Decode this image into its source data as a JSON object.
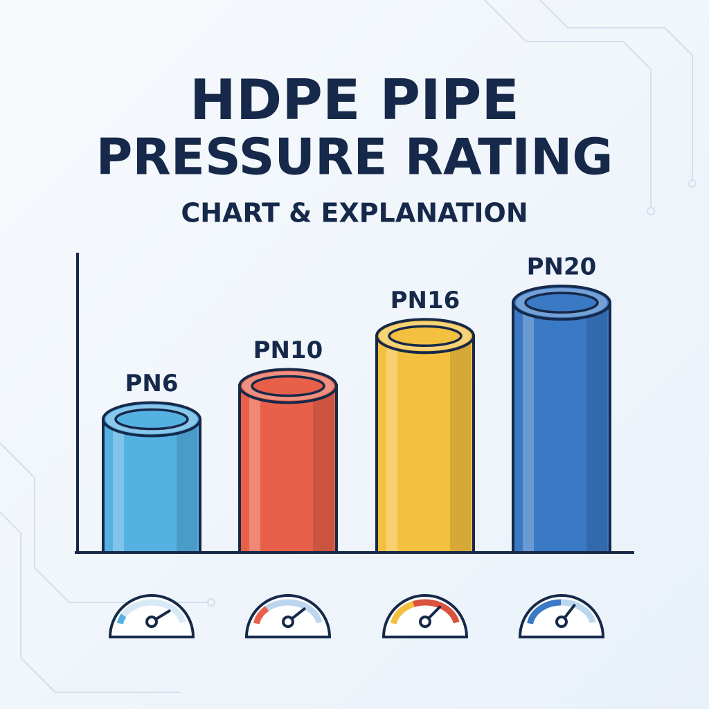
{
  "chart_data": {
    "type": "bar",
    "title": "HDPE PIPE",
    "title_line2": "PRESSURE RATING",
    "subtitle": "CHART & EXPLANATION",
    "values": [
      6,
      10,
      16,
      20
    ],
    "value_labels": [
      "PN6",
      "PN10",
      "PN16",
      "PN20"
    ],
    "colors": [
      "#56b1e3",
      "#e8604a",
      "#f4c03f",
      "#3a79c4"
    ],
    "ylim": [
      -10,
      26
    ]
  }
}
